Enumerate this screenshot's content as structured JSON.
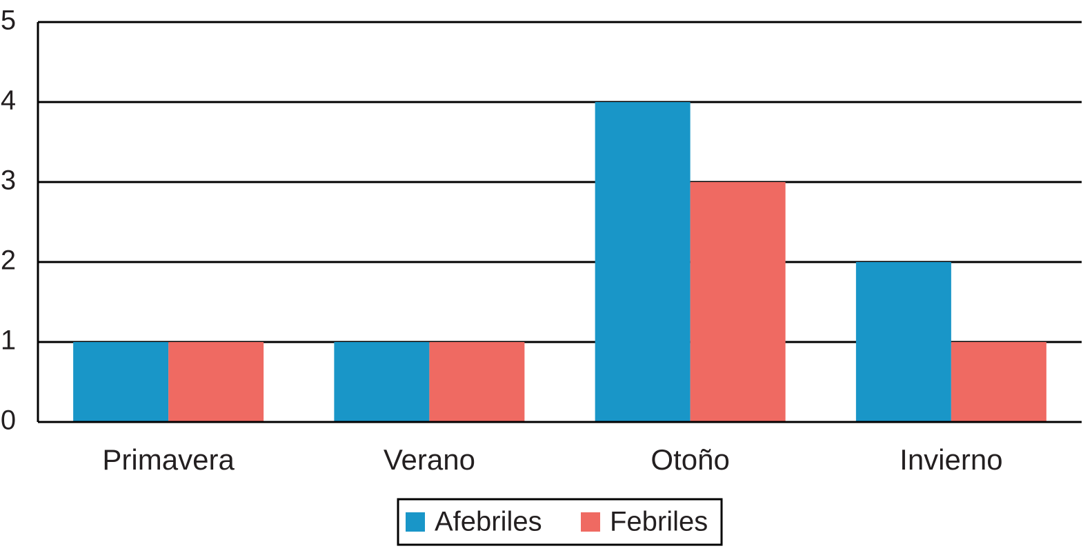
{
  "chart_data": {
    "type": "bar",
    "categories": [
      "Primavera",
      "Verano",
      "Otoño",
      "Invierno"
    ],
    "series": [
      {
        "name": "Afebriles",
        "color": "#1996c8",
        "values": [
          1,
          1,
          4,
          2
        ]
      },
      {
        "name": "Febriles",
        "color": "#ef6a62",
        "values": [
          1,
          1,
          3,
          1
        ]
      }
    ],
    "ylim": [
      0,
      5
    ],
    "yticks": [
      0,
      1,
      2,
      3,
      4,
      5
    ],
    "grid": true,
    "legend": "bottom"
  }
}
